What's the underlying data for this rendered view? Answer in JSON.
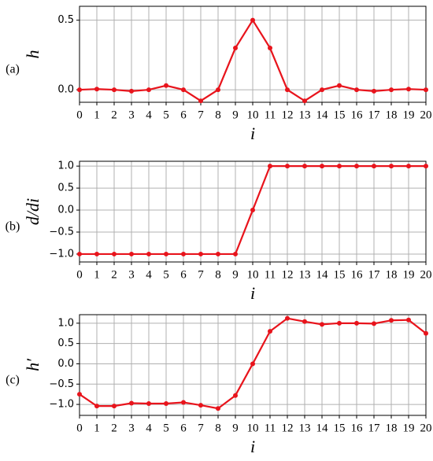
{
  "chart_data": [
    {
      "type": "line",
      "panel_label": "(a)",
      "y_label": "h",
      "x_label": "i",
      "x": [
        0,
        1,
        2,
        3,
        4,
        5,
        6,
        7,
        8,
        9,
        10,
        11,
        12,
        13,
        14,
        15,
        16,
        17,
        18,
        19,
        20
      ],
      "series": [
        {
          "color": "#e8141c",
          "values": [
            0,
            0.005,
            0,
            -0.01,
            0,
            0.03,
            0,
            -0.08,
            0,
            0.3,
            0.5,
            0.3,
            0,
            -0.08,
            0,
            0.03,
            0,
            -0.01,
            0,
            0.005,
            0
          ]
        }
      ],
      "xlim": [
        0,
        20
      ],
      "xticks": [
        0,
        1,
        2,
        3,
        4,
        5,
        6,
        7,
        8,
        9,
        10,
        11,
        12,
        13,
        14,
        15,
        16,
        17,
        18,
        19,
        20
      ],
      "ylim": [
        -0.09,
        0.6
      ],
      "yticks": [
        {
          "value": 0,
          "label": "0.0"
        },
        0.5
      ],
      "grid": true
    },
    {
      "type": "line",
      "panel_label": "(b)",
      "y_label": "d/di",
      "x_label": "i",
      "x": [
        0,
        1,
        2,
        3,
        4,
        5,
        6,
        7,
        8,
        9,
        10,
        11,
        12,
        13,
        14,
        15,
        16,
        17,
        18,
        19,
        20
      ],
      "series": [
        {
          "color": "#e8141c",
          "values": [
            -1,
            -1,
            -1,
            -1,
            -1,
            -1,
            -1,
            -1,
            -1,
            -1,
            0,
            1,
            1,
            1,
            1,
            1,
            1,
            1,
            1,
            1,
            1
          ]
        }
      ],
      "xlim": [
        0,
        20
      ],
      "xticks": [
        0,
        1,
        2,
        3,
        4,
        5,
        6,
        7,
        8,
        9,
        10,
        11,
        12,
        13,
        14,
        15,
        16,
        17,
        18,
        19,
        20
      ],
      "ylim": [
        -1.18,
        1.11
      ],
      "yticks": [
        {
          "value": -1,
          "label": "−1.0"
        },
        {
          "value": -0.5,
          "label": "−0.5"
        },
        {
          "value": 0,
          "label": "0.0"
        },
        0.5,
        {
          "value": 1,
          "label": "1.0"
        }
      ],
      "grid": true
    },
    {
      "type": "line",
      "panel_label": "(c)",
      "y_label": "h′",
      "x_label": "i",
      "x": [
        0,
        1,
        2,
        3,
        4,
        5,
        6,
        7,
        8,
        9,
        10,
        11,
        12,
        13,
        14,
        15,
        16,
        17,
        18,
        19,
        20
      ],
      "series": [
        {
          "color": "#e8141c",
          "values": [
            -0.75,
            -1.04,
            -1.04,
            -0.97,
            -0.98,
            -0.98,
            -0.95,
            -1.02,
            -1.1,
            -0.78,
            0,
            0.8,
            1.12,
            1.04,
            0.97,
            1.0,
            1.0,
            0.99,
            1.07,
            1.08,
            0.75
          ]
        }
      ],
      "xlim": [
        0,
        20
      ],
      "xticks": [
        0,
        1,
        2,
        3,
        4,
        5,
        6,
        7,
        8,
        9,
        10,
        11,
        12,
        13,
        14,
        15,
        16,
        17,
        18,
        19,
        20
      ],
      "ylim": [
        -1.27,
        1.21
      ],
      "yticks": [
        {
          "value": -1,
          "label": "−1.0"
        },
        {
          "value": -0.5,
          "label": "−0.5"
        },
        {
          "value": 0,
          "label": "0.0"
        },
        0.5,
        {
          "value": 1,
          "label": "1.0"
        }
      ],
      "grid": true
    }
  ]
}
